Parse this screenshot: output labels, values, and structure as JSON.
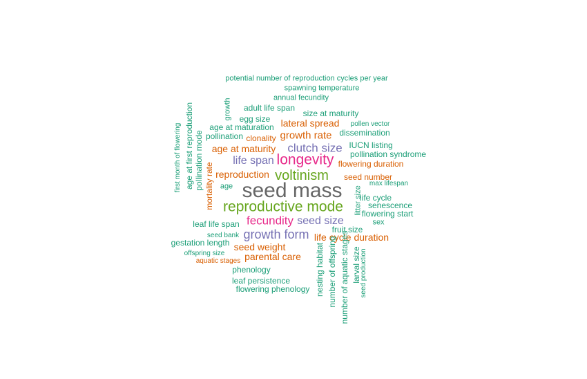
{
  "palette": {
    "teal": "#1b9e77",
    "orange": "#d95f02",
    "purple": "#7570b3",
    "magenta": "#e7298a",
    "green": "#66a61e",
    "gray": "#666666"
  },
  "words": [
    {
      "text": "potential number of reproduction cycles per year",
      "color": "teal"
    },
    {
      "text": "spawning temperature",
      "color": "teal"
    },
    {
      "text": "annual fecundity",
      "color": "teal"
    },
    {
      "text": "growth",
      "color": "teal"
    },
    {
      "text": "adult life span",
      "color": "teal"
    },
    {
      "text": "size at maturity",
      "color": "teal"
    },
    {
      "text": "age at first reproduction",
      "color": "teal"
    },
    {
      "text": "egg size",
      "color": "teal"
    },
    {
      "text": "lateral spread",
      "color": "orange"
    },
    {
      "text": "pollen vector",
      "color": "teal"
    },
    {
      "text": "age at maturation",
      "color": "teal"
    },
    {
      "text": "dissemination",
      "color": "teal"
    },
    {
      "text": "first month of flowering",
      "color": "teal"
    },
    {
      "text": "pollination",
      "color": "teal"
    },
    {
      "text": "clonality",
      "color": "orange"
    },
    {
      "text": "growth rate",
      "color": "orange"
    },
    {
      "text": "pollination mode",
      "color": "teal"
    },
    {
      "text": "IUCN listing",
      "color": "teal"
    },
    {
      "text": "age at maturity",
      "color": "orange"
    },
    {
      "text": "clutch size",
      "color": "purple"
    },
    {
      "text": "pollination syndrome",
      "color": "teal"
    },
    {
      "text": "life span",
      "color": "purple"
    },
    {
      "text": "longevity",
      "color": "magenta"
    },
    {
      "text": "flowering duration",
      "color": "orange"
    },
    {
      "text": "mortality rate",
      "color": "orange"
    },
    {
      "text": "reproduction",
      "color": "orange"
    },
    {
      "text": "voltinism",
      "color": "green"
    },
    {
      "text": "seed number",
      "color": "orange"
    },
    {
      "text": "max lifespan",
      "color": "teal"
    },
    {
      "text": "age",
      "color": "teal"
    },
    {
      "text": "seed mass",
      "color": "gray"
    },
    {
      "text": "litter size",
      "color": "teal"
    },
    {
      "text": "life cycle",
      "color": "teal"
    },
    {
      "text": "senescence",
      "color": "teal"
    },
    {
      "text": "reproductive mode",
      "color": "green"
    },
    {
      "text": "flowering start",
      "color": "teal"
    },
    {
      "text": "fecundity",
      "color": "magenta"
    },
    {
      "text": "seed size",
      "color": "purple"
    },
    {
      "text": "leaf life span",
      "color": "teal"
    },
    {
      "text": "sex",
      "color": "teal"
    },
    {
      "text": "fruit size",
      "color": "teal"
    },
    {
      "text": "seed bank",
      "color": "teal"
    },
    {
      "text": "growth form",
      "color": "purple"
    },
    {
      "text": "life cycle duration",
      "color": "orange"
    },
    {
      "text": "gestation length",
      "color": "teal"
    },
    {
      "text": "seed weight",
      "color": "orange"
    },
    {
      "text": "larval size",
      "color": "teal"
    },
    {
      "text": "offspring size",
      "color": "teal"
    },
    {
      "text": "parental care",
      "color": "orange"
    },
    {
      "text": "nesting habitat",
      "color": "teal"
    },
    {
      "text": "aquatic stages",
      "color": "orange"
    },
    {
      "text": "seed production",
      "color": "teal"
    },
    {
      "text": "phenology",
      "color": "teal"
    },
    {
      "text": "number of aquatic stages",
      "color": "teal"
    },
    {
      "text": "leaf persistence",
      "color": "teal"
    },
    {
      "text": "number of offspring",
      "color": "teal"
    },
    {
      "text": "flowering phenology",
      "color": "teal"
    }
  ]
}
